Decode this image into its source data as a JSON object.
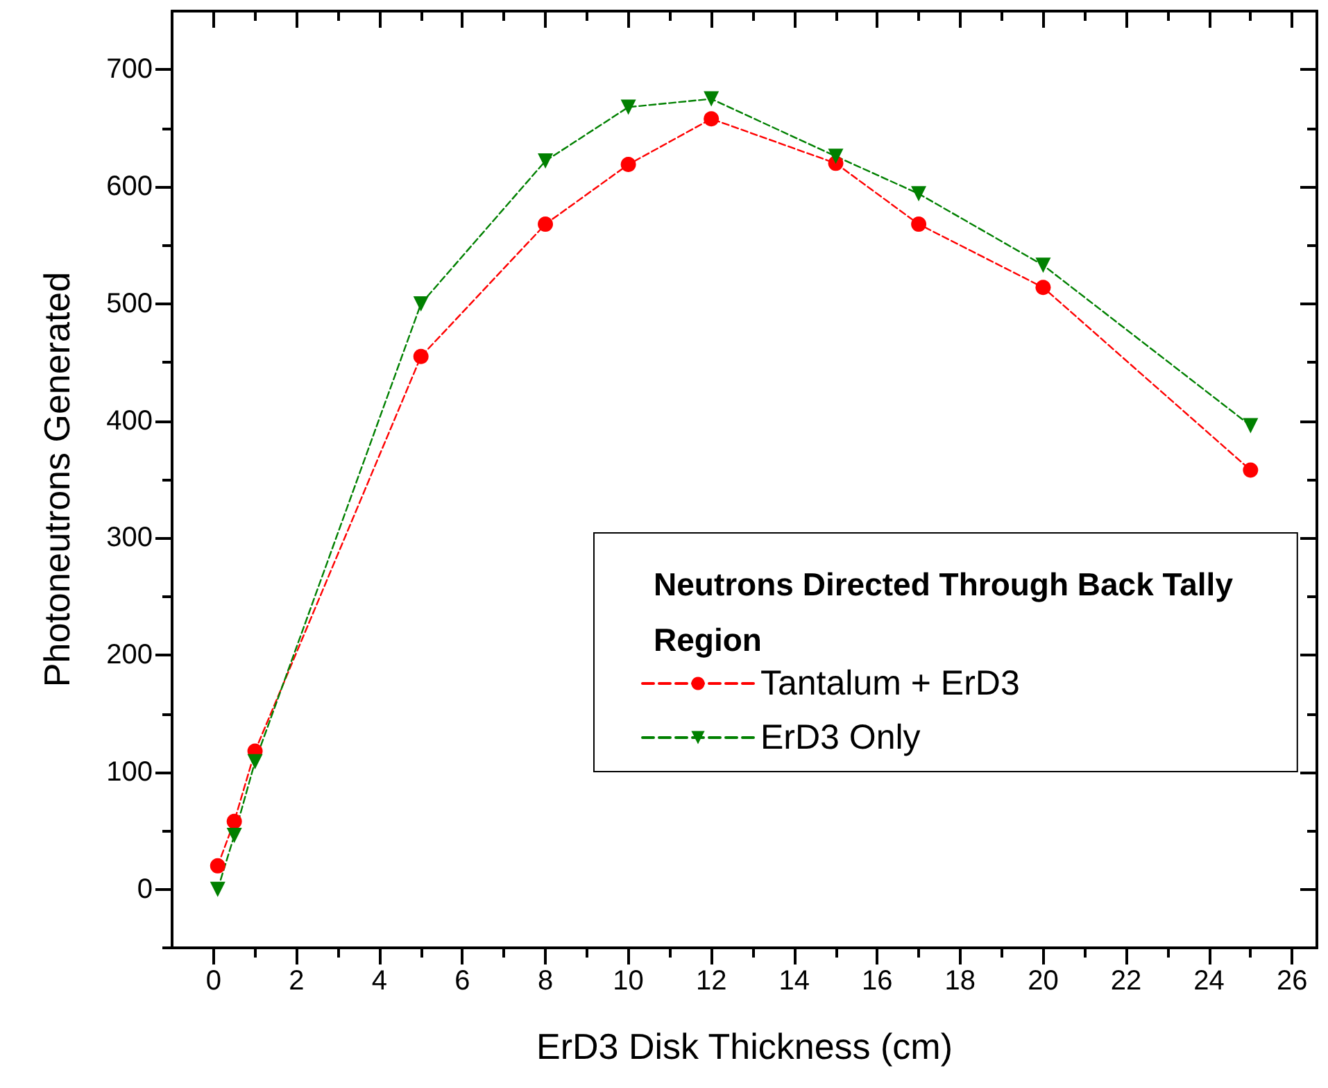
{
  "chart_data": {
    "type": "line",
    "xlabel": "ErD3 Disk Thickness (cm)",
    "ylabel": "Photoneutrons Generated",
    "legend_title": "Neutrons Directed Through Back Tally Region",
    "x": [
      0.1,
      0.5,
      1,
      5,
      8,
      10,
      12,
      15,
      17,
      20,
      25
    ],
    "series": [
      {
        "name": "Tantalum + ErD3",
        "color": "#ff0000",
        "marker": "circle",
        "values": [
          20,
          58,
          118,
          455,
          568,
          619,
          658,
          620,
          568,
          514,
          358
        ]
      },
      {
        "name": "ErD3 Only",
        "color": "#008000",
        "marker": "triangle",
        "values": [
          0,
          46,
          109,
          500,
          622,
          668,
          675,
          626,
          594,
          533,
          396
        ]
      }
    ],
    "xlim": [
      -1,
      26.6
    ],
    "xticks": [
      0,
      2,
      4,
      6,
      8,
      10,
      12,
      14,
      16,
      18,
      20,
      22,
      24,
      26
    ],
    "ylim": [
      -50,
      750
    ],
    "yticks": [
      0,
      100,
      200,
      300,
      400,
      500,
      600,
      700
    ],
    "line_style": "dashed",
    "grid": false,
    "legend": "right"
  }
}
